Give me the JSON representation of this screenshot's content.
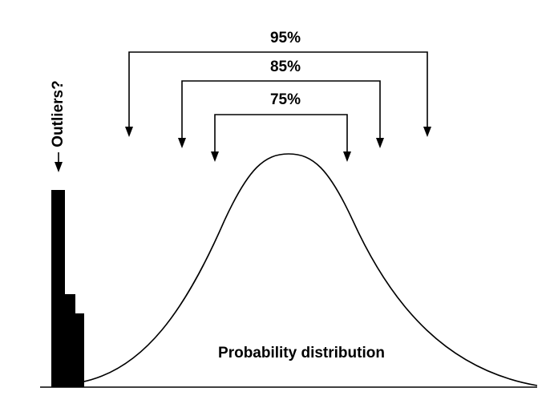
{
  "intervals": [
    {
      "label": "95%"
    },
    {
      "label": "85%"
    },
    {
      "label": "75%"
    }
  ],
  "outliers_label": "Outliers?",
  "distribution_label": "Probability distribution"
}
